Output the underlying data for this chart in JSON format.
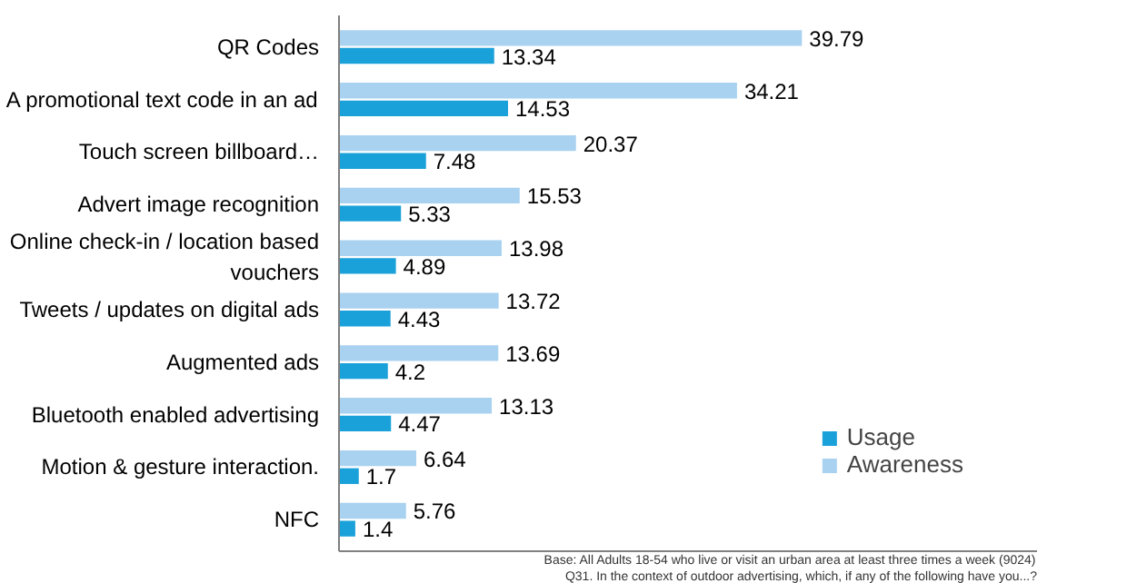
{
  "chart_data": {
    "type": "bar",
    "orientation": "horizontal",
    "categories": [
      "QR Codes",
      "A promotional text code in an ad",
      "Touch screen billboard…",
      "Advert image recognition",
      "Online check-in / location based vouchers",
      "Tweets / updates on digital ads",
      "Augmented ads",
      "Bluetooth enabled advertising",
      "Motion & gesture interaction.",
      "NFC"
    ],
    "series": [
      {
        "name": "Awareness",
        "color": "#a9d1f0",
        "values": [
          39.79,
          34.21,
          20.37,
          15.53,
          13.98,
          13.72,
          13.69,
          13.13,
          6.64,
          5.76
        ]
      },
      {
        "name": "Usage",
        "color": "#1ba1d9",
        "values": [
          13.34,
          14.53,
          7.48,
          5.33,
          4.89,
          4.43,
          4.2,
          4.47,
          1.7,
          1.4
        ]
      }
    ],
    "xlim": [
      0,
      60
    ],
    "data_labels": true,
    "legend": "bottom right",
    "grid": false,
    "tick_labels": "y",
    "annotations": [
      "Base: All Adults 18-54 who live or visit an urban area at least three times a week (9024)",
      "Q31. In the context of outdoor advertising, which, if any of the following have you...?"
    ]
  }
}
